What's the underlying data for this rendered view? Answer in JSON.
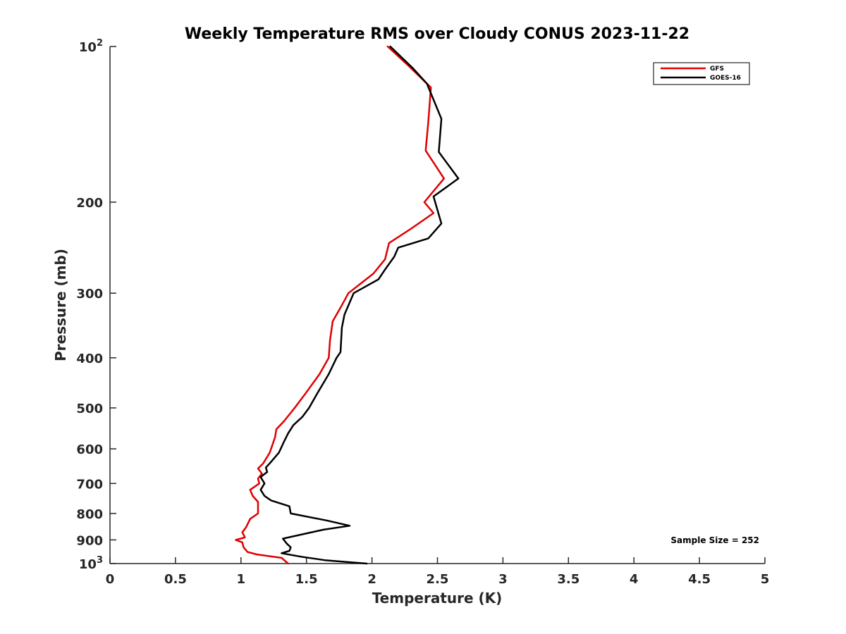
{
  "chart_data": {
    "type": "line",
    "title": "Weekly Temperature RMS over Cloudy CONUS 2023-11-22",
    "xlabel": "Temperature (K)",
    "ylabel": "Pressure (mb)",
    "xlim": [
      0,
      5
    ],
    "ylim": [
      100,
      1000
    ],
    "y_scale": "log",
    "y_reversed": true,
    "grid": false,
    "legend_position": "top-right",
    "x_ticks": [
      0,
      0.5,
      1,
      1.5,
      2,
      2.5,
      3,
      3.5,
      4,
      4.5,
      5
    ],
    "x_tick_labels": [
      "0",
      "0.5",
      "1",
      "1.5",
      "2",
      "2.5",
      "3",
      "3.5",
      "4",
      "4.5",
      "5"
    ],
    "y_ticks": [
      {
        "value": 100,
        "label": "10",
        "sup": "2"
      },
      {
        "value": 200,
        "label": "200",
        "sup": ""
      },
      {
        "value": 300,
        "label": "300",
        "sup": ""
      },
      {
        "value": 400,
        "label": "400",
        "sup": ""
      },
      {
        "value": 500,
        "label": "500",
        "sup": ""
      },
      {
        "value": 600,
        "label": "600",
        "sup": ""
      },
      {
        "value": 700,
        "label": "700",
        "sup": ""
      },
      {
        "value": 800,
        "label": "800",
        "sup": ""
      },
      {
        "value": 900,
        "label": "900",
        "sup": ""
      },
      {
        "value": 1000,
        "label": "10",
        "sup": "3"
      }
    ],
    "annotation": "Sample Size = 252",
    "series": [
      {
        "name": "GFS",
        "color": "#e00000",
        "points": [
          [
            2.12,
            100
          ],
          [
            2.28,
            109
          ],
          [
            2.45,
            120
          ],
          [
            2.43,
            140
          ],
          [
            2.41,
            159
          ],
          [
            2.55,
            180
          ],
          [
            2.4,
            200
          ],
          [
            2.47,
            210
          ],
          [
            2.3,
            225
          ],
          [
            2.13,
            240
          ],
          [
            2.1,
            258
          ],
          [
            2.01,
            275
          ],
          [
            1.82,
            300
          ],
          [
            1.76,
            320
          ],
          [
            1.7,
            340
          ],
          [
            1.68,
            370
          ],
          [
            1.67,
            400
          ],
          [
            1.6,
            430
          ],
          [
            1.49,
            470
          ],
          [
            1.41,
            500
          ],
          [
            1.33,
            530
          ],
          [
            1.27,
            550
          ],
          [
            1.26,
            570
          ],
          [
            1.22,
            610
          ],
          [
            1.17,
            640
          ],
          [
            1.13,
            655
          ],
          [
            1.16,
            670
          ],
          [
            1.13,
            685
          ],
          [
            1.14,
            700
          ],
          [
            1.07,
            720
          ],
          [
            1.09,
            740
          ],
          [
            1.13,
            760
          ],
          [
            1.13,
            800
          ],
          [
            1.07,
            820
          ],
          [
            1.04,
            850
          ],
          [
            1.01,
            870
          ],
          [
            1.03,
            890
          ],
          [
            0.96,
            900
          ],
          [
            1.01,
            910
          ],
          [
            1.02,
            930
          ],
          [
            1.05,
            950
          ],
          [
            1.12,
            960
          ],
          [
            1.31,
            975
          ],
          [
            1.36,
            1000
          ]
        ]
      },
      {
        "name": "GOES-16",
        "color": "#000000",
        "points": [
          [
            2.14,
            100
          ],
          [
            2.31,
            110
          ],
          [
            2.42,
            118
          ],
          [
            2.53,
            138
          ],
          [
            2.51,
            160
          ],
          [
            2.66,
            180
          ],
          [
            2.47,
            195
          ],
          [
            2.53,
            220
          ],
          [
            2.43,
            235
          ],
          [
            2.2,
            245
          ],
          [
            2.17,
            255
          ],
          [
            2.1,
            270
          ],
          [
            2.05,
            282
          ],
          [
            1.86,
            300
          ],
          [
            1.79,
            330
          ],
          [
            1.77,
            350
          ],
          [
            1.76,
            390
          ],
          [
            1.73,
            400
          ],
          [
            1.67,
            430
          ],
          [
            1.58,
            470
          ],
          [
            1.52,
            500
          ],
          [
            1.47,
            520
          ],
          [
            1.4,
            540
          ],
          [
            1.36,
            560
          ],
          [
            1.33,
            580
          ],
          [
            1.29,
            610
          ],
          [
            1.22,
            640
          ],
          [
            1.19,
            652
          ],
          [
            1.2,
            665
          ],
          [
            1.15,
            680
          ],
          [
            1.18,
            700
          ],
          [
            1.15,
            720
          ],
          [
            1.18,
            740
          ],
          [
            1.23,
            755
          ],
          [
            1.37,
            775
          ],
          [
            1.38,
            800
          ],
          [
            1.65,
            825
          ],
          [
            1.83,
            845
          ],
          [
            1.63,
            860
          ],
          [
            1.32,
            895
          ],
          [
            1.35,
            915
          ],
          [
            1.38,
            930
          ],
          [
            1.37,
            945
          ],
          [
            1.31,
            955
          ],
          [
            1.46,
            970
          ],
          [
            1.64,
            985
          ],
          [
            1.96,
            1000
          ]
        ]
      }
    ]
  }
}
